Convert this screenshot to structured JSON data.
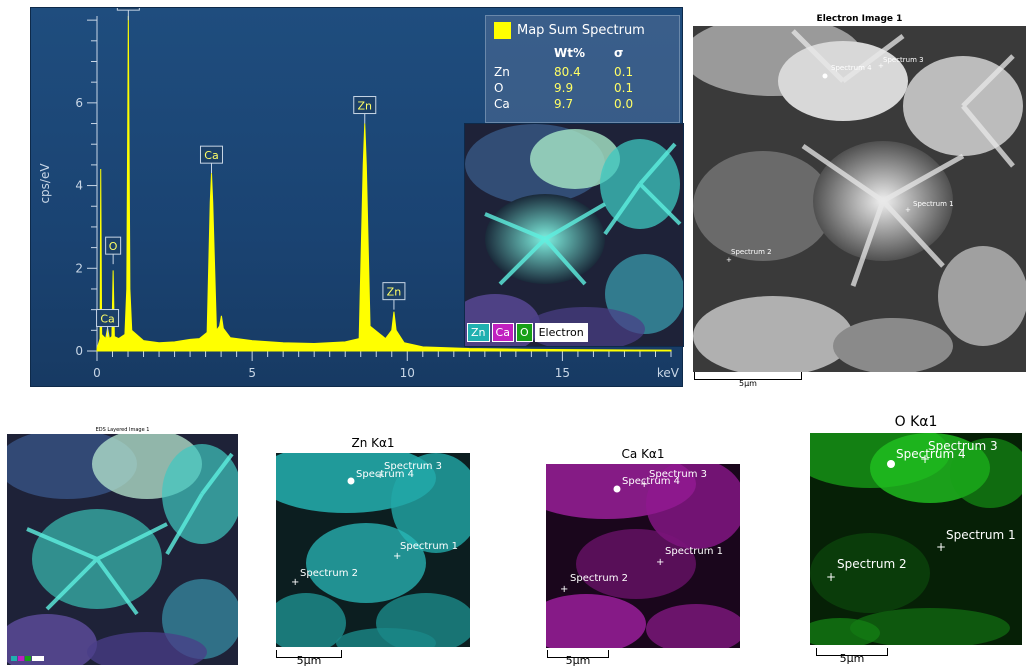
{
  "chart_data": {
    "type": "line",
    "title": "",
    "xlabel": "keV",
    "ylabel": "cps/eV",
    "xlim": [
      0,
      18.5
    ],
    "ylim": [
      0,
      8.1
    ],
    "x_ticks": [
      "0",
      "5",
      "10",
      "15"
    ],
    "y_ticks": [
      "0",
      "2",
      "4",
      "6"
    ],
    "series": [
      {
        "name": "Map Sum Spectrum",
        "color": "#ffff00"
      }
    ],
    "peaks": [
      {
        "label": "Ca",
        "x": 0.34,
        "y": 0.35
      },
      {
        "label": "O",
        "x": 0.52,
        "y": 2.1
      },
      {
        "label": "Zn",
        "x": 1.01,
        "y": 8.0
      },
      {
        "label": "Ca",
        "x": 3.69,
        "y": 4.3
      },
      {
        "label": "Zn",
        "x": 8.63,
        "y": 5.5
      },
      {
        "label": "Zn",
        "x": 9.57,
        "y": 1.0
      }
    ],
    "spectrum_points": [
      [
        0,
        0.05
      ],
      [
        0.1,
        0.3
      ],
      [
        0.12,
        4.4
      ],
      [
        0.15,
        0.4
      ],
      [
        0.28,
        0.3
      ],
      [
        0.34,
        0.55
      ],
      [
        0.4,
        0.3
      ],
      [
        0.48,
        0.35
      ],
      [
        0.52,
        1.95
      ],
      [
        0.56,
        0.35
      ],
      [
        0.7,
        0.3
      ],
      [
        0.9,
        0.4
      ],
      [
        0.96,
        1.5
      ],
      [
        1.01,
        8.1
      ],
      [
        1.06,
        1.5
      ],
      [
        1.12,
        0.5
      ],
      [
        1.5,
        0.25
      ],
      [
        2.0,
        0.2
      ],
      [
        2.5,
        0.22
      ],
      [
        3.0,
        0.28
      ],
      [
        3.3,
        0.3
      ],
      [
        3.55,
        0.45
      ],
      [
        3.65,
        3.6
      ],
      [
        3.69,
        4.3
      ],
      [
        3.73,
        3.6
      ],
      [
        3.85,
        0.5
      ],
      [
        3.95,
        0.6
      ],
      [
        4.01,
        0.85
      ],
      [
        4.07,
        0.55
      ],
      [
        4.3,
        0.32
      ],
      [
        5.0,
        0.25
      ],
      [
        6.0,
        0.2
      ],
      [
        7.0,
        0.18
      ],
      [
        8.0,
        0.22
      ],
      [
        8.45,
        0.3
      ],
      [
        8.58,
        4.5
      ],
      [
        8.63,
        5.5
      ],
      [
        8.68,
        4.5
      ],
      [
        8.8,
        0.6
      ],
      [
        9.3,
        0.3
      ],
      [
        9.5,
        0.5
      ],
      [
        9.57,
        0.95
      ],
      [
        9.64,
        0.5
      ],
      [
        9.9,
        0.2
      ],
      [
        10.5,
        0.1
      ],
      [
        12.0,
        0.06
      ],
      [
        14.0,
        0.04
      ],
      [
        16.0,
        0.03
      ],
      [
        18.5,
        0.02
      ]
    ]
  },
  "quant_table": {
    "legend_label": "Map Sum Spectrum",
    "legend_color": "#ffff00",
    "header": {
      "element": "",
      "wt": "Wt%",
      "sigma": "σ"
    },
    "rows": [
      {
        "element": "Zn",
        "wt": "80.4",
        "sigma": "0.1"
      },
      {
        "element": "O",
        "wt": "9.9",
        "sigma": "0.1"
      },
      {
        "element": "Ca",
        "wt": "9.7",
        "sigma": "0.0"
      }
    ]
  },
  "inset_legend": [
    {
      "label": "Zn",
      "color": "#28c8c8"
    },
    {
      "label": "Ca",
      "color": "#d028d0"
    },
    {
      "label": "O",
      "color": "#20c020"
    },
    {
      "label": "Electron",
      "color": "#ffffff"
    }
  ],
  "electron_image": {
    "title": "Electron Image 1",
    "scale": "5µm",
    "spectra": [
      {
        "label": "Spectrum 4"
      },
      {
        "label": "Spectrum 3"
      },
      {
        "label": "Spectrum 1"
      },
      {
        "label": "Spectrum 2"
      }
    ]
  },
  "layered_image": {
    "title": "EDS Layered Image 1"
  },
  "zn_map": {
    "title": "Zn Kα1",
    "scale": "5µm",
    "spectra": [
      "Spectrum 3",
      "Spectrum 4",
      "Spectrum 1",
      "Spectrum 2"
    ],
    "color": "#28c8c8"
  },
  "ca_map": {
    "title": "Ca Kα1",
    "scale": "5µm",
    "spectra": [
      "Spectrum 3",
      "Spectrum 4",
      "Spectrum 1",
      "Spectrum 2"
    ],
    "color": "#c020c0"
  },
  "o_map": {
    "title": "O Kα1",
    "scale": "5µm",
    "spectra": [
      "Spectrum 3",
      "Spectrum 4",
      "Spectrum 1",
      "Spectrum 2"
    ],
    "color": "#10b010"
  }
}
